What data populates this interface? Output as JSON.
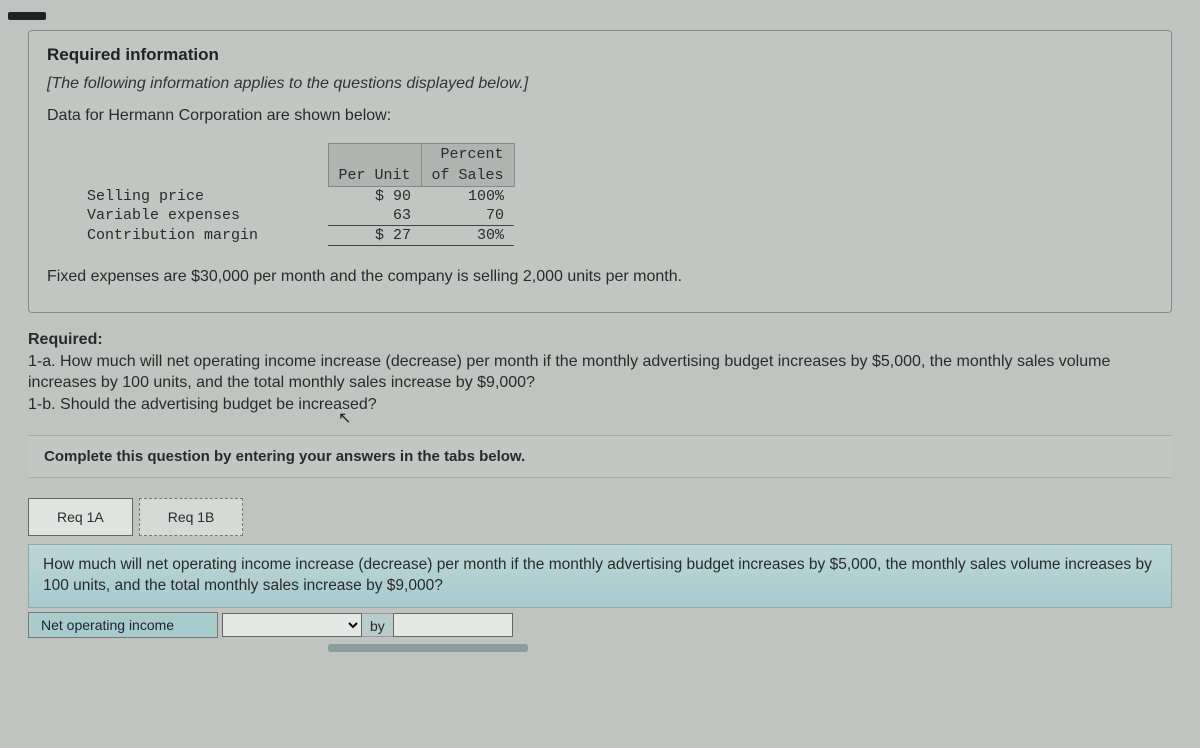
{
  "info": {
    "title": "Required information",
    "note": "[The following information applies to the questions displayed below.]",
    "intro": "Data for Hermann Corporation are shown below:",
    "table": {
      "headers": {
        "col1_a": "",
        "col2": "Per Unit",
        "col3_a": "Percent",
        "col3_b": "of Sales"
      },
      "rows": [
        {
          "label": "Selling price",
          "per_unit": "$ 90",
          "pct": "100%"
        },
        {
          "label": "Variable expenses",
          "per_unit": "63",
          "pct": "70"
        },
        {
          "label": "Contribution margin",
          "per_unit": "$ 27",
          "pct": "30%"
        }
      ],
      "header_bg": "#b0b4b0",
      "font": "Courier New"
    },
    "fixed": "Fixed expenses are $30,000 per month and the company is selling 2,000 units per month."
  },
  "required": {
    "title": "Required:",
    "q1a": "1-a. How much will net operating income increase (decrease) per month if the monthly advertising budget increases by $5,000, the monthly sales volume increases by 100 units, and the total monthly sales increase by $9,000?",
    "q1b": "1-b. Should the advertising budget be increased?"
  },
  "instruction": "Complete this question by entering your answers in the tabs below.",
  "tabs": {
    "a": "Req 1A",
    "b": "Req 1B",
    "active": "a"
  },
  "prompt": "How much will net operating income increase (decrease) per month if the monthly advertising budget increases by $5,000, the monthly sales volume increases by 100 units, and the total monthly sales increase by $9,000?",
  "answer": {
    "label": "Net operating income",
    "by": "by"
  },
  "colors": {
    "page_bg": "#c0c4c0",
    "prompt_bg_top": "#bcd6d8",
    "prompt_bg_bot": "#a8cacc",
    "answer_label_bg": "#a8cccc"
  }
}
